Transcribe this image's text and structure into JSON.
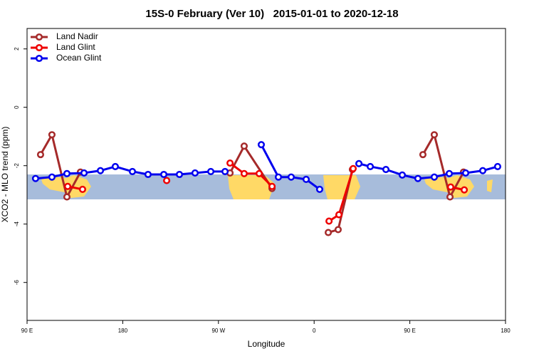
{
  "chart_data": {
    "type": "line",
    "title": "15S-0 February (Ver 10)   2015-01-01 to 2020-12-18",
    "x_label": "Longitude",
    "y_label": "XCO2 - MLO trend (ppm)",
    "xlim": [
      90,
      540
    ],
    "ylim": [
      -7.3,
      2.7
    ],
    "xticks": [
      {
        "value": 90,
        "label": "90 E"
      },
      {
        "value": 180,
        "label": "180"
      },
      {
        "value": 270,
        "label": "90 W"
      },
      {
        "value": 360,
        "label": "0"
      },
      {
        "value": 450,
        "label": "90 E"
      },
      {
        "value": 540,
        "label": "180"
      }
    ],
    "yticks": [
      2,
      0,
      -2,
      -4,
      -6
    ],
    "legend": "top-left",
    "series": [
      {
        "name": "Land Nadir",
        "color": "#a52a2a",
        "x": [
          102.7,
          113.4,
          127.5,
          140.2,
          null,
          280.9,
          294.2,
          320.4,
          null,
          373.3,
          382.6,
          396.0,
          null,
          462.3,
          473.0,
          487.8,
          500.5
        ],
        "values": [
          -1.62,
          -0.94,
          -3.07,
          -2.22,
          null,
          -2.25,
          -1.33,
          -2.78,
          null,
          -4.29,
          -4.19,
          -2.13,
          null,
          -1.62,
          -0.94,
          -3.07,
          -2.22
        ]
      },
      {
        "name": "Land Glint",
        "color": "#ee0000",
        "x": [
          128.2,
          142.2,
          null,
          221.3,
          null,
          280.9,
          294.2,
          308.3,
          320.4,
          null,
          374.0,
          383.3,
          396.7,
          null,
          488.4,
          501.2
        ],
        "values": [
          -2.71,
          -2.81,
          null,
          -2.51,
          null,
          -1.91,
          -2.27,
          -2.27,
          -2.71,
          null,
          -3.9,
          -3.68,
          -2.1,
          null,
          -2.73,
          -2.83
        ]
      },
      {
        "name": "Ocean Glint",
        "color": "#0000ee",
        "x": [
          98.0,
          113.4,
          127.5,
          143.6,
          159.0,
          173.0,
          189.1,
          203.8,
          218.6,
          233.3,
          248.0,
          262.8,
          276.2,
          null,
          310.3,
          326.4,
          338.4,
          352.5,
          365.2,
          null,
          402.1,
          412.8,
          427.5,
          442.9,
          457.6,
          473.0,
          487.1,
          502.5,
          518.6,
          532.6
        ],
        "values": [
          -2.44,
          -2.39,
          -2.27,
          -2.25,
          -2.17,
          -2.03,
          -2.2,
          -2.3,
          -2.3,
          -2.3,
          -2.25,
          -2.2,
          -2.2,
          null,
          -1.28,
          -2.39,
          -2.39,
          -2.47,
          -2.81,
          null,
          -1.93,
          -2.03,
          -2.13,
          -2.32,
          -2.44,
          -2.39,
          -2.27,
          -2.25,
          -2.17,
          -2.03
        ]
      }
    ]
  }
}
